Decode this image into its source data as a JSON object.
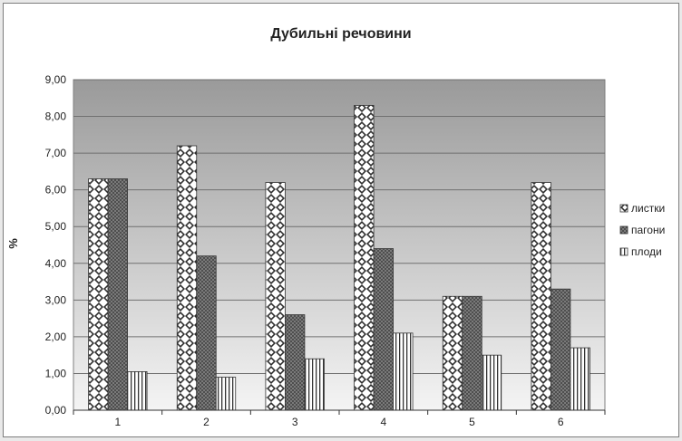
{
  "chart_data": {
    "type": "bar",
    "title": "Дубильні речовини",
    "xlabel": "",
    "ylabel": "%",
    "categories": [
      "1",
      "2",
      "3",
      "4",
      "5",
      "6"
    ],
    "series": [
      {
        "name": "листки",
        "values": [
          6.3,
          7.2,
          6.2,
          8.3,
          3.1,
          6.2
        ]
      },
      {
        "name": "пагони",
        "values": [
          6.3,
          4.2,
          2.6,
          4.4,
          3.1,
          3.3
        ]
      },
      {
        "name": "плоди",
        "values": [
          1.05,
          0.9,
          1.4,
          2.1,
          1.5,
          1.7
        ]
      }
    ],
    "ylim": [
      0,
      9
    ],
    "ytick_labels": [
      "0,00",
      "1,00",
      "2,00",
      "3,00",
      "4,00",
      "5,00",
      "6,00",
      "7,00",
      "8,00",
      "9,00"
    ],
    "grid": true,
    "legend_position": "right"
  }
}
